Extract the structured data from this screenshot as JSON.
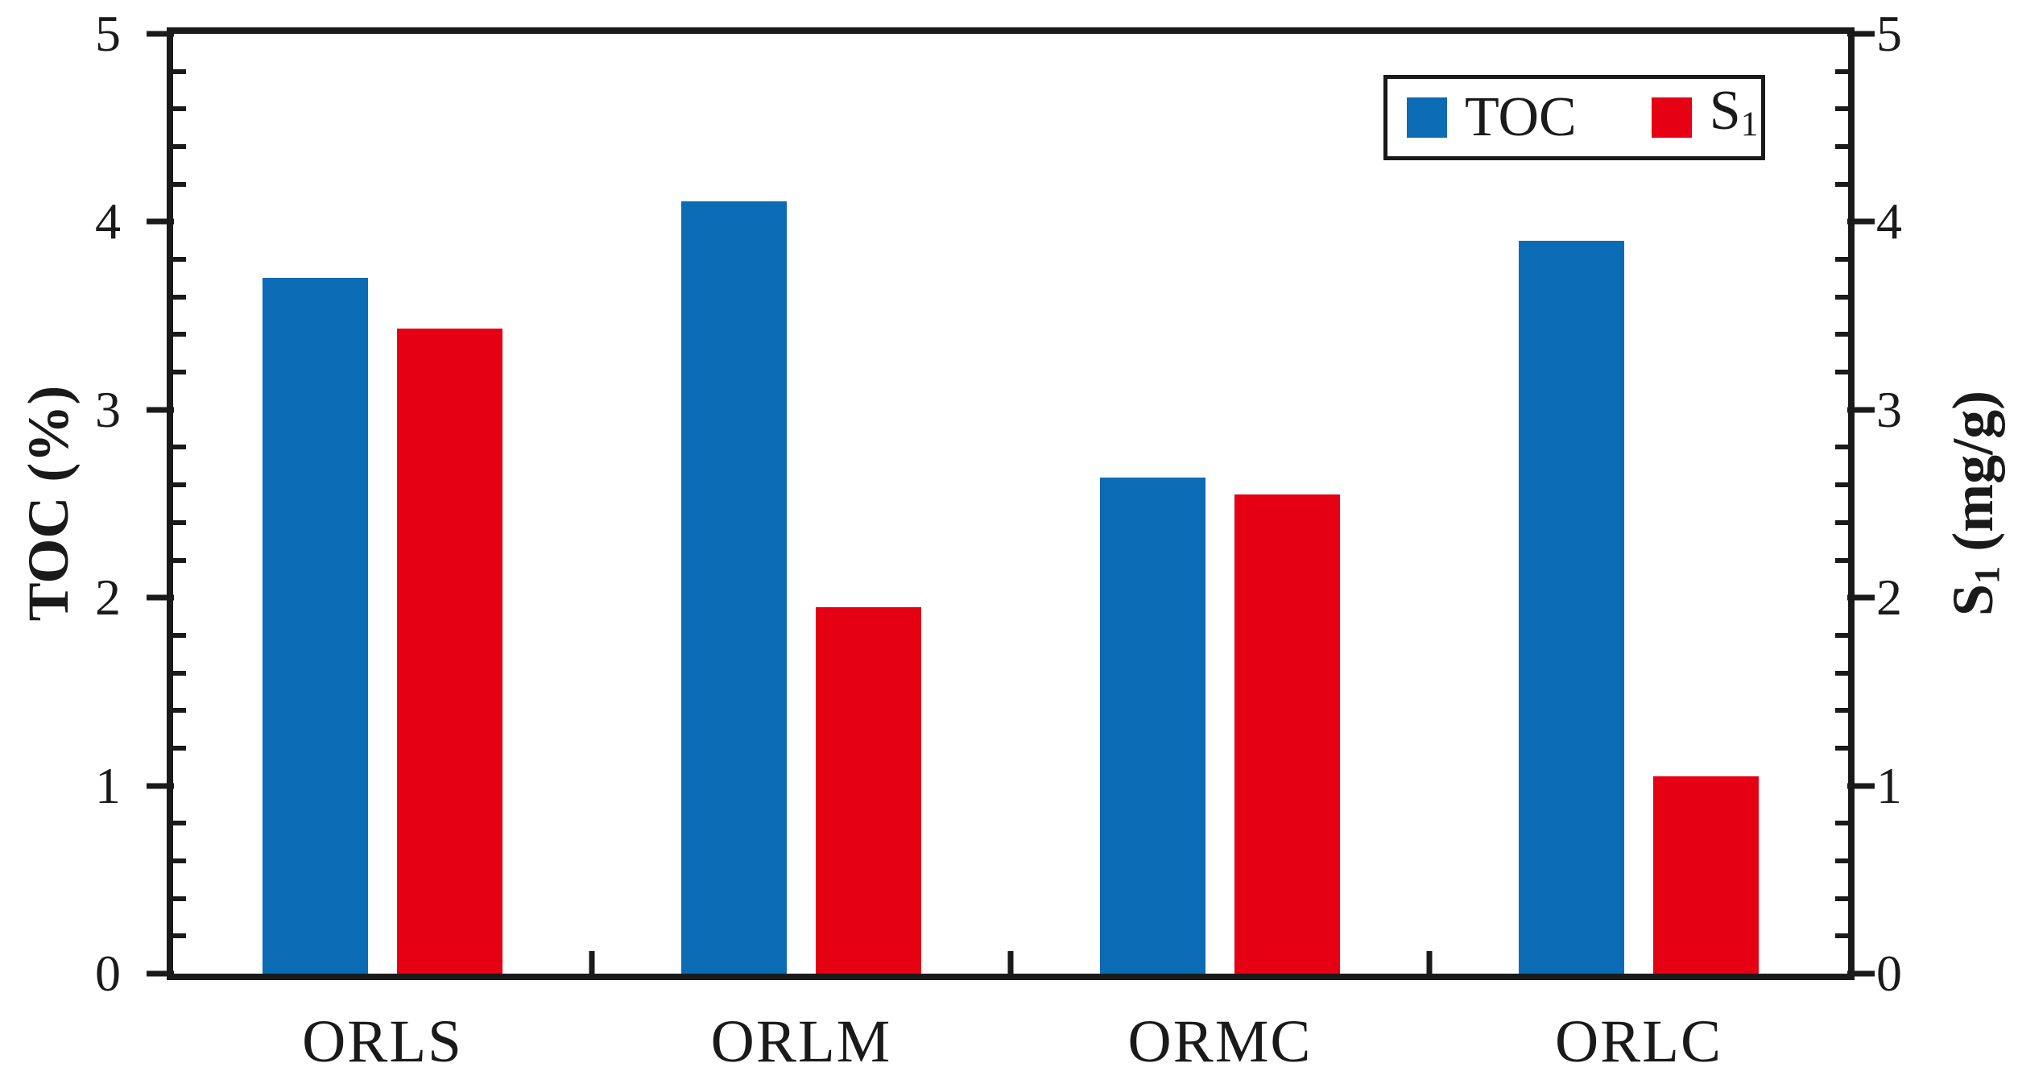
{
  "chart_data": {
    "type": "bar",
    "title": "",
    "categories": [
      "ORLS",
      "ORLM",
      "ORMC",
      "ORLC"
    ],
    "series": [
      {
        "name": "TOC",
        "axis": "left",
        "color": "#0B6BB5",
        "values": [
          3.7,
          4.11,
          2.64,
          3.9
        ]
      },
      {
        "name": "S1",
        "axis": "right",
        "color": "#E60013",
        "values": [
          3.43,
          1.95,
          2.55,
          1.05
        ]
      }
    ],
    "left_axis": {
      "label": "TOC (%)",
      "min": 0,
      "max": 5,
      "major_ticks": [
        0,
        1,
        2,
        3,
        4,
        5
      ],
      "minor_step": 0.2
    },
    "right_axis": {
      "label": "S1 (mg/g)",
      "label_main": "S",
      "label_sub": "1",
      "label_rest": " (mg/g)",
      "min": 0,
      "max": 5,
      "major_ticks": [
        0,
        1,
        2,
        3,
        4,
        5
      ],
      "minor_step": 0.2
    },
    "legend": {
      "position": "top-right",
      "items": [
        {
          "text": "TOC",
          "sub": "",
          "color": "#0B6BB5"
        },
        {
          "text": "S",
          "sub": "1",
          "color": "#E60013"
        }
      ]
    },
    "grid": false,
    "colors": {
      "axis": "#1A1A1A",
      "background": "#FFFFFF"
    }
  }
}
